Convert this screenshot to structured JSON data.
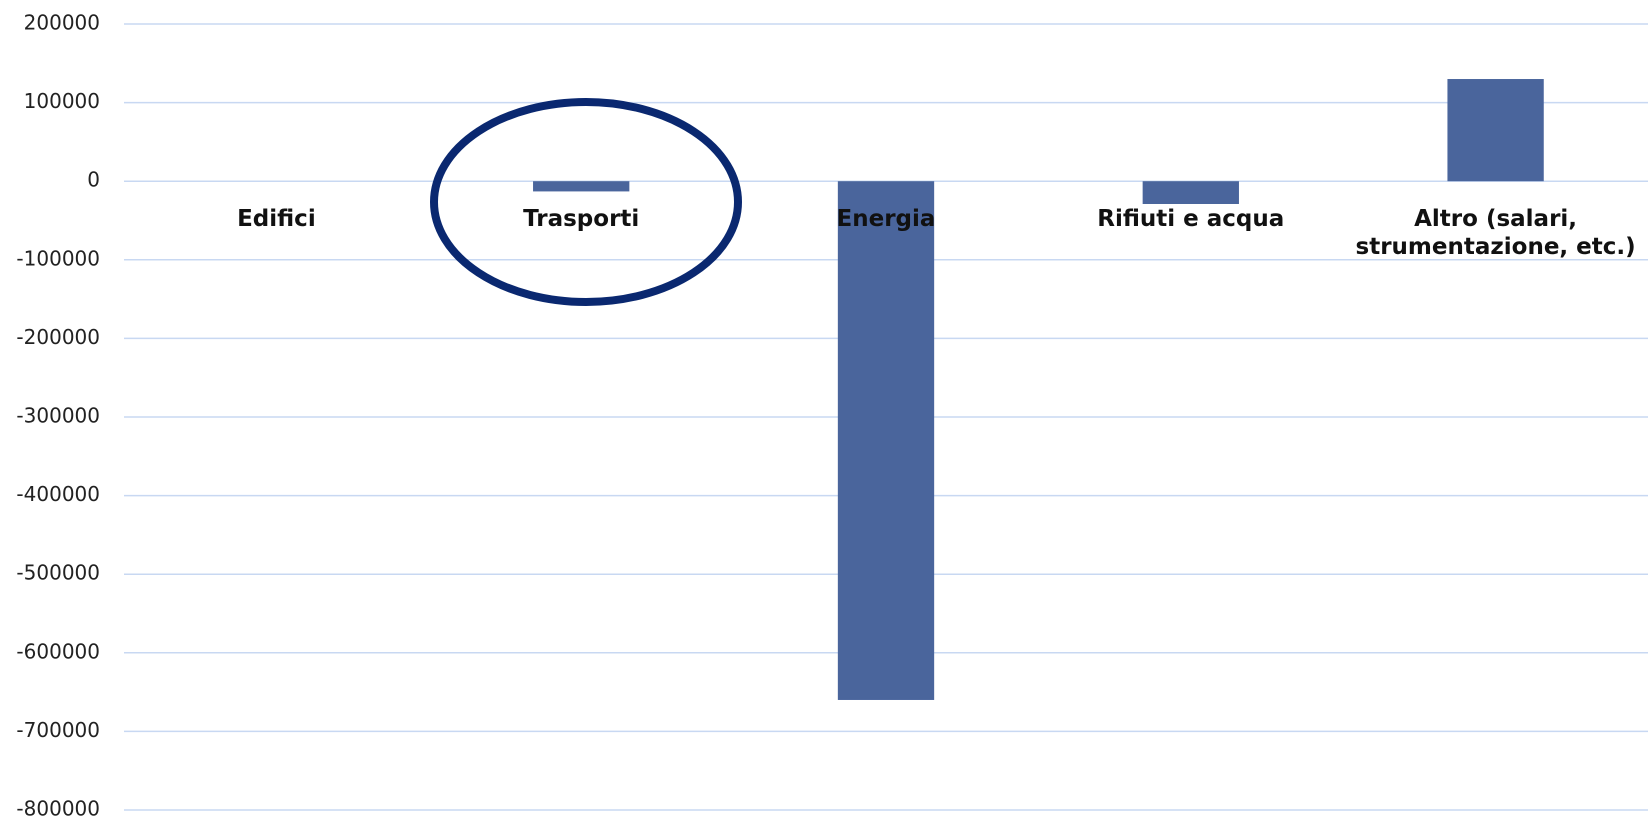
{
  "chart_data": {
    "type": "bar",
    "categories": [
      "Edifici",
      "Trasporti",
      "Energia",
      "Rifiuti e acqua",
      "Altro (salari, strumentazione, etc.)"
    ],
    "values": [
      0,
      -13000,
      -660000,
      -29000,
      130000
    ],
    "color": "#4a659c",
    "ylim": [
      -800000,
      200000
    ],
    "yticks": [
      -800000,
      -700000,
      -600000,
      -500000,
      -400000,
      -300000,
      -200000,
      -100000,
      0,
      100000,
      200000
    ],
    "grid": true
  }
}
